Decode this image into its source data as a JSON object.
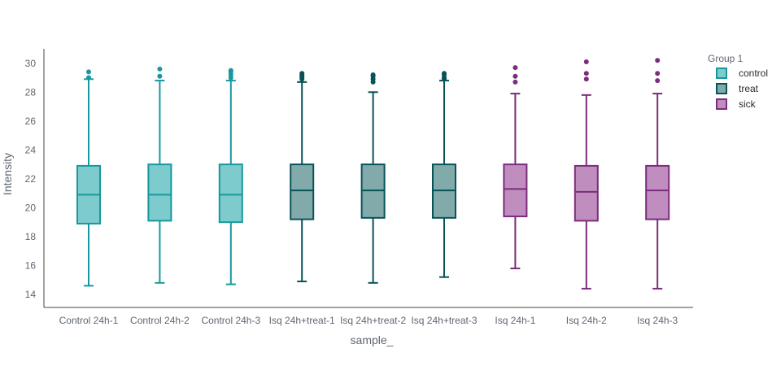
{
  "chart_data": {
    "type": "box",
    "xlabel": "sample_",
    "ylabel": "Intensity",
    "ylim": [
      13.1,
      31.0
    ],
    "yticks": [
      14,
      16,
      18,
      20,
      22,
      24,
      26,
      28,
      30
    ],
    "grid": false,
    "legend": {
      "title": "Group 1",
      "placement": "top-right",
      "entries": [
        {
          "label": "control",
          "color": "#17989e",
          "fill": "#7dcbcd"
        },
        {
          "label": "treat",
          "color": "#075357",
          "fill": "#83aaab"
        },
        {
          "label": "sick",
          "color": "#7b2c7d",
          "fill": "#c08ebe"
        }
      ]
    },
    "categories": [
      "Control 24h-1",
      "Control 24h-2",
      "Control 24h-3",
      "Isq 24h+treat-1",
      "Isq 24h+treat-2",
      "Isq 24h+treat-3",
      "Isq 24h-1",
      "Isq 24h-2",
      "Isq 24h-3"
    ],
    "series": [
      {
        "name": "control",
        "boxes": [
          {
            "category": "Control 24h-1",
            "min": 14.6,
            "q1": 18.9,
            "median": 20.9,
            "q3": 22.9,
            "max": 28.9,
            "outliers": [
              29.0,
              29.4
            ]
          },
          {
            "category": "Control 24h-2",
            "min": 14.8,
            "q1": 19.1,
            "median": 20.9,
            "q3": 23.0,
            "max": 28.8,
            "outliers": [
              29.1,
              29.6
            ]
          },
          {
            "category": "Control 24h-3",
            "min": 14.7,
            "q1": 19.0,
            "median": 20.9,
            "q3": 23.0,
            "max": 28.8,
            "outliers": [
              29.0,
              29.2,
              29.4,
              29.5
            ]
          }
        ]
      },
      {
        "name": "treat",
        "boxes": [
          {
            "category": "Isq 24h+treat-1",
            "min": 14.9,
            "q1": 19.2,
            "median": 21.2,
            "q3": 23.0,
            "max": 28.7,
            "outliers": [
              28.9,
              29.0,
              29.1,
              29.2,
              29.3
            ]
          },
          {
            "category": "Isq 24h+treat-2",
            "min": 14.8,
            "q1": 19.3,
            "median": 21.2,
            "q3": 23.0,
            "max": 28.0,
            "outliers": [
              28.7,
              28.9,
              29.1,
              29.2
            ]
          },
          {
            "category": "Isq 24h+treat-3",
            "min": 15.2,
            "q1": 19.3,
            "median": 21.2,
            "q3": 23.0,
            "max": 28.8,
            "outliers": [
              28.9,
              29.0,
              29.2,
              29.3
            ]
          }
        ]
      },
      {
        "name": "sick",
        "boxes": [
          {
            "category": "Isq 24h-1",
            "min": 15.8,
            "q1": 19.4,
            "median": 21.3,
            "q3": 23.0,
            "max": 27.9,
            "outliers": [
              28.7,
              29.1,
              29.7
            ]
          },
          {
            "category": "Isq 24h-2",
            "min": 14.4,
            "q1": 19.1,
            "median": 21.1,
            "q3": 22.9,
            "max": 27.8,
            "outliers": [
              28.9,
              29.3,
              30.1
            ]
          },
          {
            "category": "Isq 24h-3",
            "min": 14.4,
            "q1": 19.2,
            "median": 21.2,
            "q3": 22.9,
            "max": 27.9,
            "outliers": [
              28.8,
              29.3,
              30.2
            ]
          }
        ]
      }
    ]
  }
}
